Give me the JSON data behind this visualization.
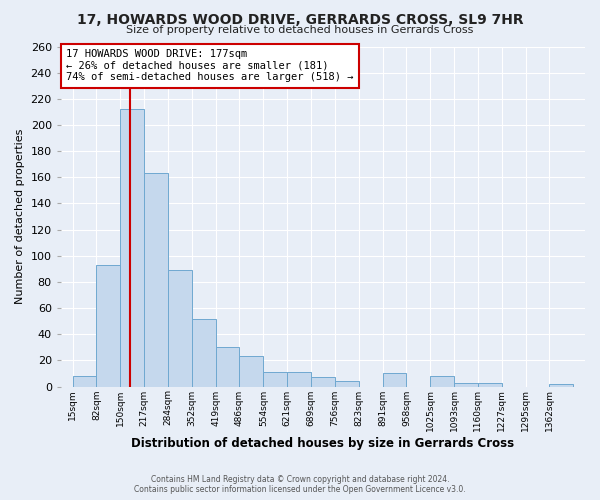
{
  "title": "17, HOWARDS WOOD DRIVE, GERRARDS CROSS, SL9 7HR",
  "subtitle": "Size of property relative to detached houses in Gerrards Cross",
  "xlabel": "Distribution of detached houses by size in Gerrards Cross",
  "ylabel": "Number of detached properties",
  "bin_labels": [
    "15sqm",
    "82sqm",
    "150sqm",
    "217sqm",
    "284sqm",
    "352sqm",
    "419sqm",
    "486sqm",
    "554sqm",
    "621sqm",
    "689sqm",
    "756sqm",
    "823sqm",
    "891sqm",
    "958sqm",
    "1025sqm",
    "1093sqm",
    "1160sqm",
    "1227sqm",
    "1295sqm",
    "1362sqm"
  ],
  "bin_edges": [
    15,
    82,
    150,
    217,
    284,
    352,
    419,
    486,
    554,
    621,
    689,
    756,
    823,
    891,
    958,
    1025,
    1093,
    1160,
    1227,
    1295,
    1362
  ],
  "bar_heights": [
    8,
    93,
    212,
    163,
    89,
    52,
    30,
    23,
    11,
    11,
    7,
    4,
    0,
    10,
    0,
    8,
    3,
    3,
    0,
    0,
    2
  ],
  "bar_color": "#c5d8ed",
  "bar_edge_color": "#6fa8d0",
  "bg_color": "#e8eef7",
  "grid_color": "#ffffff",
  "vline_x": 177,
  "vline_color": "#cc0000",
  "annotation_title": "17 HOWARDS WOOD DRIVE: 177sqm",
  "annotation_line1": "← 26% of detached houses are smaller (181)",
  "annotation_line2": "74% of semi-detached houses are larger (518) →",
  "annotation_box_color": "#ffffff",
  "annotation_border_color": "#cc0000",
  "ylim": [
    0,
    260
  ],
  "yticks": [
    0,
    20,
    40,
    60,
    80,
    100,
    120,
    140,
    160,
    180,
    200,
    220,
    240,
    260
  ],
  "footer1": "Contains HM Land Registry data © Crown copyright and database right 2024.",
  "footer2": "Contains public sector information licensed under the Open Government Licence v3.0."
}
